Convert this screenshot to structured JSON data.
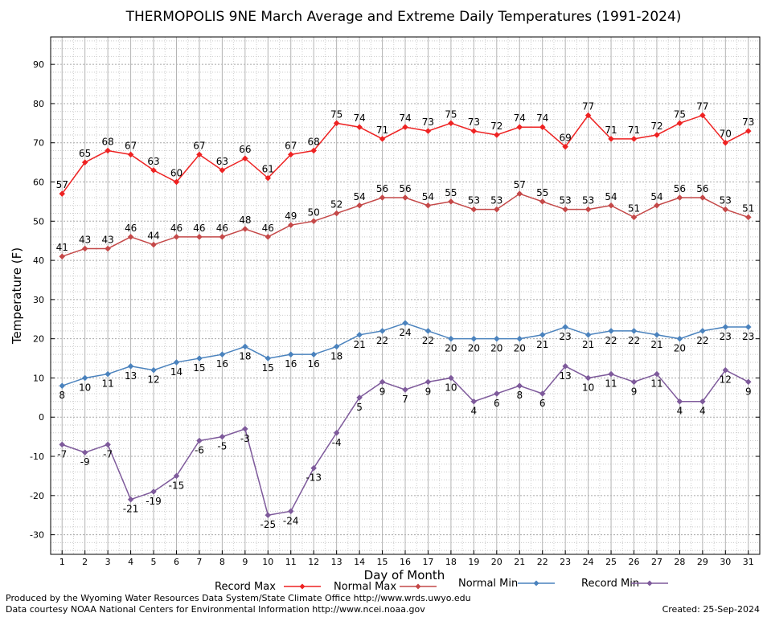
{
  "footer": {
    "producer": "Produced by the Wyoming Water Resources Data System/State Climate Office http://www.wrds.uwyo.edu",
    "courtesy": "Data courtesy NOAA National Centers for Environmental Information http://www.ncei.noaa.gov",
    "created": "Created:  25-Sep-2024"
  },
  "chart_data": {
    "type": "line",
    "title": "THERMOPOLIS 9NE March Average and Extreme Daily Temperatures (1991-2024)",
    "xlabel": "Day of Month",
    "ylabel": "Temperature (F)",
    "xlim": [
      0.5,
      31.5
    ],
    "ylim": [
      -35,
      97
    ],
    "yticks": [
      -30,
      -20,
      -10,
      0,
      10,
      20,
      30,
      40,
      50,
      60,
      70,
      80,
      90
    ],
    "x": [
      1,
      2,
      3,
      4,
      5,
      6,
      7,
      8,
      9,
      10,
      11,
      12,
      13,
      14,
      15,
      16,
      17,
      18,
      19,
      20,
      21,
      22,
      23,
      24,
      25,
      26,
      27,
      28,
      29,
      30,
      31
    ],
    "grid": true,
    "legend_position": "bottom",
    "series": [
      {
        "name": "Record Max",
        "color": "#ee2222",
        "values": [
          57,
          65,
          68,
          67,
          63,
          60,
          67,
          63,
          66,
          61,
          67,
          68,
          75,
          74,
          71,
          74,
          73,
          75,
          73,
          72,
          74,
          74,
          69,
          77,
          71,
          71,
          72,
          75,
          77,
          70,
          73
        ]
      },
      {
        "name": "Normal Max",
        "color": "#c44848",
        "values": [
          41,
          43,
          43,
          46,
          44,
          46,
          46,
          46,
          48,
          46,
          49,
          50,
          52,
          54,
          56,
          56,
          54,
          55,
          53,
          53,
          57,
          55,
          53,
          53,
          54,
          51,
          54,
          56,
          56,
          53,
          51
        ]
      },
      {
        "name": "Normal Min",
        "color": "#4a82bd",
        "values": [
          8,
          10,
          11,
          13,
          12,
          14,
          15,
          16,
          18,
          15,
          16,
          16,
          18,
          21,
          22,
          24,
          22,
          20,
          20,
          20,
          20,
          21,
          23,
          21,
          22,
          22,
          21,
          20,
          22,
          23,
          23
        ]
      },
      {
        "name": "Record Min",
        "color": "#7e5a9b",
        "values": [
          -7,
          -9,
          -7,
          -21,
          -19,
          -15,
          -6,
          -5,
          -3,
          -25,
          -24,
          -13,
          -4,
          5,
          9,
          7,
          9,
          10,
          4,
          6,
          8,
          6,
          13,
          10,
          11,
          9,
          11,
          4,
          4,
          12,
          9
        ]
      }
    ]
  }
}
